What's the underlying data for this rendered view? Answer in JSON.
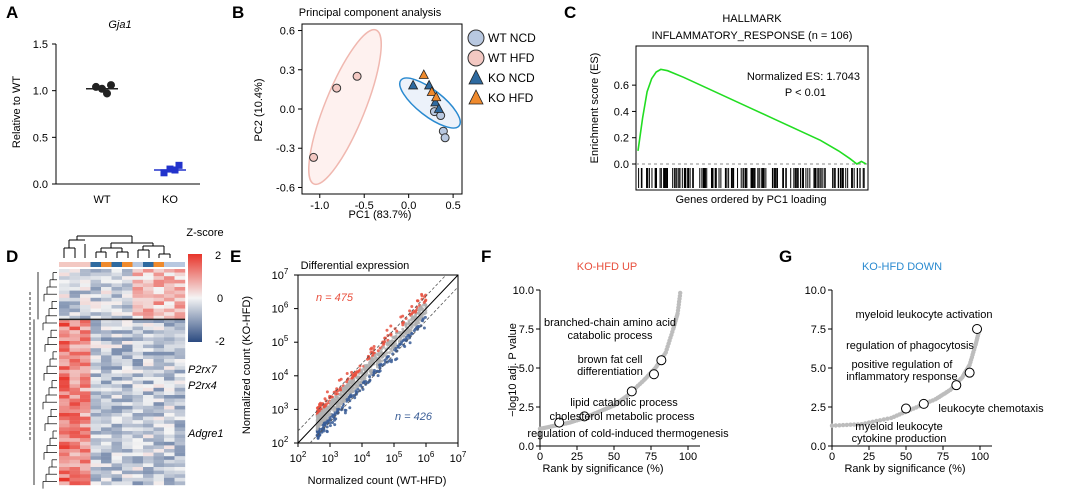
{
  "panels": {
    "A": {
      "label": "A",
      "title": "Gja1",
      "ylabel": "Relative to WT",
      "yticks": [
        "1.5",
        "1.0",
        "0.5",
        "0.0"
      ],
      "ylim": [
        0,
        1.5
      ],
      "categories": [
        "WT",
        "KO"
      ],
      "points": [
        [
          1.04,
          0.97,
          1.06,
          1.02
        ],
        [
          0.12,
          0.15,
          0.2,
          0.16
        ]
      ],
      "means": [
        1.02,
        0.15
      ],
      "colors": [
        "#222222",
        "#2233cc"
      ]
    },
    "B": {
      "label": "B",
      "title": "Principal component analysis",
      "xlabel": "PC1 (83.7%)",
      "ylabel": "PC2 (10.4%)",
      "xticks": [
        "-1.0",
        "-0.5",
        "0.0",
        "0.5"
      ],
      "yticks": [
        "0.6",
        "0.3",
        "0.0",
        "-0.3",
        "-0.6"
      ],
      "xlim": [
        -1.2,
        0.6
      ],
      "ylim": [
        -0.65,
        0.65
      ],
      "legend": [
        "WT NCD",
        "WT HFD",
        "KO NCD",
        "KO HFD"
      ],
      "groups": [
        {
          "name": "WT NCD",
          "marker": "circle",
          "color": "#b8c8e0",
          "points": [
            [
              0.29,
              -0.02
            ],
            [
              0.36,
              -0.05
            ],
            [
              0.39,
              -0.17
            ],
            [
              0.41,
              -0.22
            ]
          ]
        },
        {
          "name": "WT HFD",
          "marker": "circle",
          "color": "#f3c8c2",
          "points": [
            [
              -1.07,
              -0.37
            ],
            [
              -0.81,
              0.16
            ],
            [
              -0.58,
              0.25
            ]
          ]
        },
        {
          "name": "KO NCD",
          "marker": "triangle",
          "color": "#2e6aa0",
          "points": [
            [
              0.05,
              0.18
            ],
            [
              0.23,
              0.18
            ],
            [
              0.3,
              0.05
            ],
            [
              0.34,
              0.0
            ]
          ]
        },
        {
          "name": "KO HFD",
          "marker": "triangle",
          "color": "#ef8a2d",
          "points": [
            [
              0.17,
              0.26
            ],
            [
              0.26,
              0.13
            ],
            [
              0.31,
              0.09
            ]
          ]
        }
      ]
    },
    "C": {
      "label": "C",
      "title_line1": "HALLMARK",
      "title_line2": "INFLAMMATORY_RESPONSE (n = 106)",
      "ylabel": "Enrichment score (ES)",
      "xlabel": "Genes ordered by PC1 loading",
      "yticks": [
        "0.6",
        "0.4",
        "0.2",
        "0.0"
      ],
      "ylim": [
        -0.05,
        0.77
      ],
      "annotation1": "Normalized ES: 1.7043",
      "annotation2": "P < 0.01",
      "es_curve": [
        [
          0,
          0.1
        ],
        [
          2,
          0.35
        ],
        [
          4,
          0.55
        ],
        [
          6,
          0.65
        ],
        [
          8,
          0.7
        ],
        [
          10,
          0.72
        ],
        [
          13,
          0.71
        ],
        [
          20,
          0.66
        ],
        [
          30,
          0.58
        ],
        [
          40,
          0.5
        ],
        [
          50,
          0.42
        ],
        [
          60,
          0.34
        ],
        [
          70,
          0.26
        ],
        [
          80,
          0.18
        ],
        [
          88,
          0.1
        ],
        [
          93,
          0.04
        ],
        [
          96,
          0.0
        ],
        [
          98,
          0.02
        ],
        [
          100,
          0.0
        ]
      ],
      "line_color": "#22dd22"
    },
    "D": {
      "label": "D",
      "legend_title": "Z-score",
      "legend_ticks": [
        "2",
        "0",
        "-2"
      ],
      "genes": [
        "P2rx7",
        "P2rx4",
        "Adgre1"
      ]
    },
    "E": {
      "label": "E",
      "title": "Differential expression",
      "xlabel": "Normalized count (WT-HFD)",
      "ylabel": "Normalized count (KO-HFD)",
      "xticks": [
        "10^2",
        "10^3",
        "10^4",
        "10^5",
        "10^6",
        "10^7"
      ],
      "yticks": [
        "10^7",
        "10^6",
        "10^5",
        "10^4",
        "10^3",
        "10^2"
      ],
      "xlim_log10": [
        2,
        7
      ],
      "ylim_log10": [
        2,
        7
      ],
      "n_up": "n = 475",
      "n_down": "n = 426",
      "up_color": "#e8503e",
      "down_color": "#3a5d96",
      "ns_color": "#b0b0b0"
    },
    "F": {
      "label": "F",
      "title": "KO-HFD UP",
      "title_color": "#e8503e",
      "xlabel": "Rank by significance (%)",
      "ylabel": "−log10 adj. P value",
      "xticks": [
        "0",
        "25",
        "50",
        "75",
        "100"
      ],
      "yticks": [
        "10.0",
        "7.5",
        "5.0",
        "2.5",
        "0.0"
      ],
      "xlim": [
        0,
        100
      ],
      "ylim": [
        0,
        10
      ],
      "terms": [
        {
          "label1": "branched-chain amino acid",
          "label2": "catabolic process",
          "x": 82,
          "y": 5.5
        },
        {
          "label1": "brown fat cell",
          "label2": "differentiation",
          "x": 77,
          "y": 4.6
        },
        {
          "label1": "lipid catabolic process",
          "label2": "",
          "x": 62,
          "y": 3.5
        },
        {
          "label1": "cholesterol metabolic process",
          "label2": "",
          "x": 30,
          "y": 1.9
        },
        {
          "label1": "regulation of cold-induced thermogenesis",
          "label2": "",
          "x": 13,
          "y": 1.5
        }
      ],
      "curve": [
        [
          0,
          1.1
        ],
        [
          10,
          1.3
        ],
        [
          20,
          1.5
        ],
        [
          30,
          1.8
        ],
        [
          40,
          2.2
        ],
        [
          50,
          2.6
        ],
        [
          60,
          3.3
        ],
        [
          70,
          4.2
        ],
        [
          78,
          5.0
        ],
        [
          85,
          6.0
        ],
        [
          90,
          7.5
        ],
        [
          93,
          8.5
        ],
        [
          95,
          10.0
        ]
      ]
    },
    "G": {
      "label": "G",
      "title": "KO-HFD DOWN",
      "title_color": "#2a8ad0",
      "xlabel": "Rank by significance (%)",
      "xticks": [
        "0",
        "25",
        "50",
        "75",
        "100"
      ],
      "yticks": [
        "10.0",
        "7.5",
        "5.0",
        "2.5",
        "0.0"
      ],
      "xlim": [
        0,
        100
      ],
      "ylim": [
        0,
        10
      ],
      "terms": [
        {
          "label1": "myeloid leukocyte activation",
          "label2": "",
          "x": 98,
          "y": 7.5
        },
        {
          "label1": "regulation of phagocytosis",
          "label2": "",
          "x": 93,
          "y": 4.7
        },
        {
          "label1": "positive regulation of",
          "label2": "inflammatory response",
          "x": 84,
          "y": 3.9
        },
        {
          "label1": "leukocyte chemotaxis",
          "label2": "",
          "x": 62,
          "y": 2.7
        },
        {
          "label1": "myeloid leukocyte",
          "label2": "cytokine production",
          "x": 50,
          "y": 2.4
        }
      ],
      "curve": [
        [
          0,
          1.3
        ],
        [
          20,
          1.4
        ],
        [
          40,
          1.8
        ],
        [
          55,
          2.4
        ],
        [
          70,
          3.0
        ],
        [
          80,
          3.6
        ],
        [
          88,
          4.4
        ],
        [
          93,
          5.2
        ],
        [
          97,
          6.5
        ],
        [
          100,
          7.6
        ]
      ]
    }
  }
}
